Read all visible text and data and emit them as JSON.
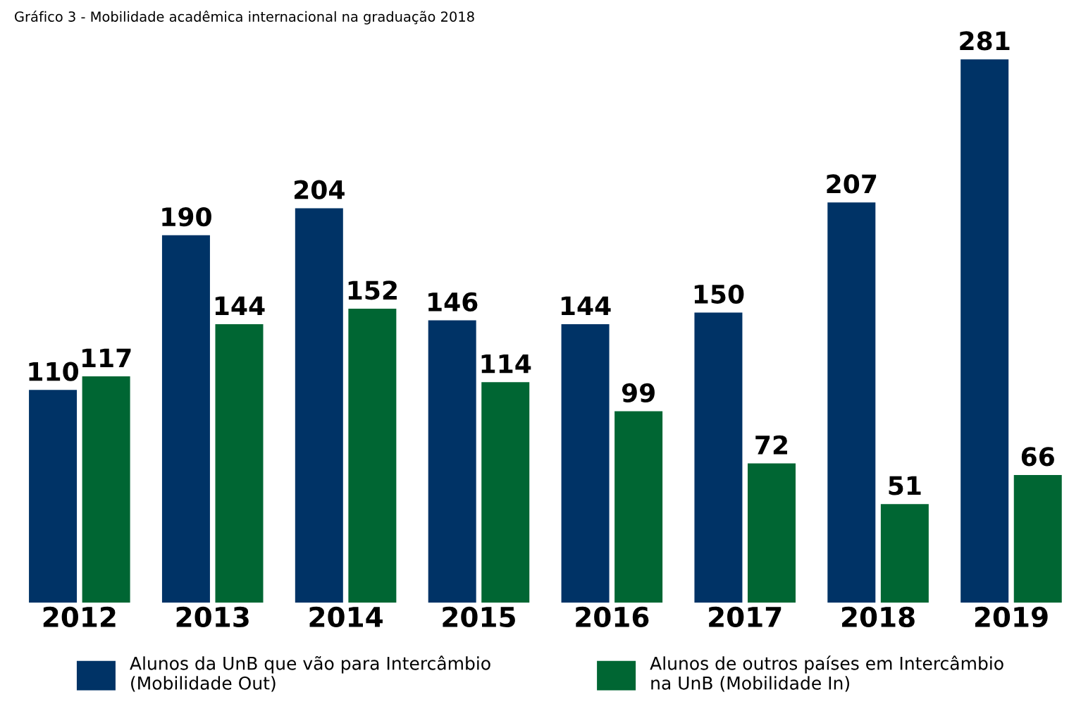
{
  "chart_data": {
    "type": "bar",
    "title": "Gráfico 3 - Mobilidade acadêmica internacional na graduação 2018",
    "categories": [
      "2012",
      "2013",
      "2014",
      "2015",
      "2016",
      "2017",
      "2018",
      "2019"
    ],
    "series": [
      {
        "name": "Alunos da UnB que vão para Intercâmbio\n(Mobilidade Out)",
        "color": "#003366",
        "values": [
          110,
          190,
          204,
          146,
          144,
          150,
          207,
          281
        ]
      },
      {
        "name": "Alunos de outros países em Intercâmbio\nna UnB (Mobilidade In)",
        "color": "#006633",
        "values": [
          117,
          144,
          152,
          114,
          99,
          72,
          51,
          66
        ]
      }
    ],
    "data_labels": true,
    "legend": "bottom",
    "grid": false,
    "tick_labels": "x"
  }
}
